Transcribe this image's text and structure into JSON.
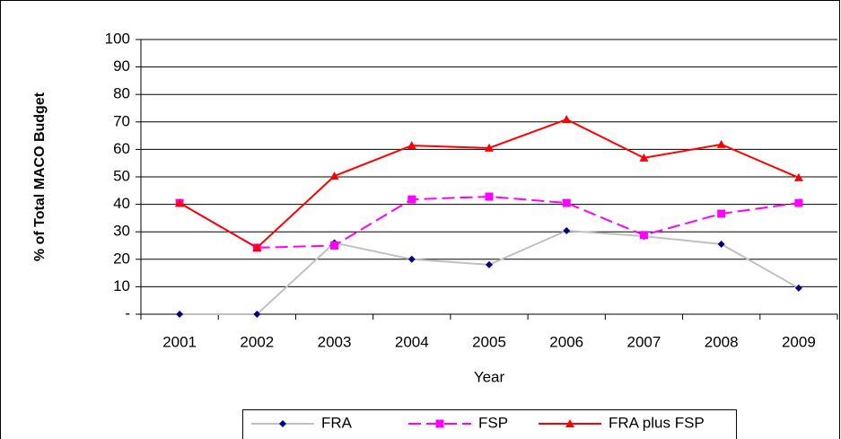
{
  "chart_data": {
    "type": "line",
    "y_label": "% of Total MACO Budget",
    "x_label": "Year",
    "categories": [
      "2001",
      "2002",
      "2003",
      "2004",
      "2005",
      "2006",
      "2007",
      "2008",
      "2009"
    ],
    "series": [
      {
        "name": "FRA",
        "color": "#c0c0c0",
        "marker_color": "#000080",
        "marker": "diamond",
        "dash": false,
        "values": [
          0,
          0,
          26,
          20,
          18,
          30.4,
          28.4,
          25.5,
          9.5
        ]
      },
      {
        "name": "FSP",
        "color": "#ff00ff",
        "marker_color": "#ff00ff",
        "marker": "square",
        "dash": true,
        "values": [
          40.5,
          24.2,
          25,
          41.8,
          42.8,
          40.5,
          28.8,
          36.6,
          40.5
        ]
      },
      {
        "name": "FRA plus FSP",
        "color": "#ff0000",
        "marker_color": "#ff0000",
        "marker": "triangle",
        "dash": false,
        "values": [
          40.5,
          24.2,
          50.3,
          61.4,
          60.5,
          70.9,
          56.9,
          61.8,
          49.7
        ]
      }
    ],
    "ylim": [
      0,
      100
    ],
    "yticks": [
      {
        "value": 0,
        "label": "-"
      },
      10,
      20,
      30,
      40,
      50,
      60,
      70,
      80,
      90,
      100
    ],
    "grid": true,
    "legend": "bottom"
  }
}
